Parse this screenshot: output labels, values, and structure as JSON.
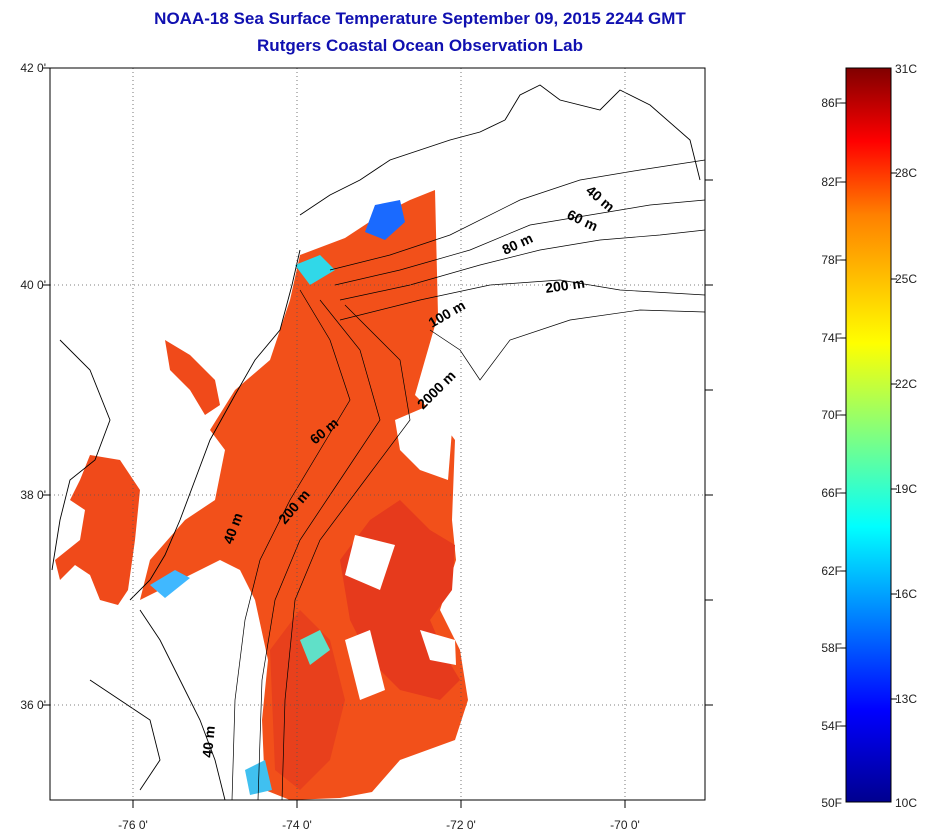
{
  "title": {
    "line1": "NOAA-18 Sea Surface Temperature September 09, 2015 2244 GMT",
    "line2": "Rutgers Coastal Ocean Observation Lab"
  },
  "map": {
    "lat_ticks": [
      {
        "value": 42,
        "label": "42 0'"
      },
      {
        "value": 40,
        "label": "40 0'"
      },
      {
        "value": 38,
        "label": "38 0'"
      },
      {
        "value": 36,
        "label": "36 0'"
      }
    ],
    "lon_ticks": [
      {
        "value": -76,
        "label": "-76 0'"
      },
      {
        "value": -74,
        "label": "-74 0'"
      },
      {
        "value": -72,
        "label": "-72 0'"
      },
      {
        "value": -70,
        "label": "-70 0'"
      }
    ],
    "lon_range": [
      -77,
      -69
    ],
    "lat_range": [
      35,
      42
    ],
    "grid": "dotted",
    "isobath_labels": [
      "40 m",
      "60 m",
      "80 m",
      "200 m",
      "100 m",
      "2000 m",
      "60 m",
      "200 m",
      "40 m",
      "40 m"
    ]
  },
  "colorbar": {
    "fahrenheit_labels": [
      "86F",
      "82F",
      "78F",
      "74F",
      "70F",
      "66F",
      "62F",
      "58F",
      "54F",
      "50F"
    ],
    "celsius_labels": [
      "31C",
      "28C",
      "25C",
      "22C",
      "19C",
      "16C",
      "13C",
      "10C"
    ],
    "range_celsius": [
      10,
      31
    ],
    "colormap": "jet",
    "colors": [
      "#00008f",
      "#0000ff",
      "#0080ff",
      "#00ffff",
      "#80ff80",
      "#ffff00",
      "#ff8000",
      "#ff0000",
      "#800000"
    ]
  },
  "colors": {
    "title": "#1010b0",
    "sst_warm": "#f2501a",
    "sst_hot": "#e63a1c",
    "land_outline": "#000000"
  }
}
